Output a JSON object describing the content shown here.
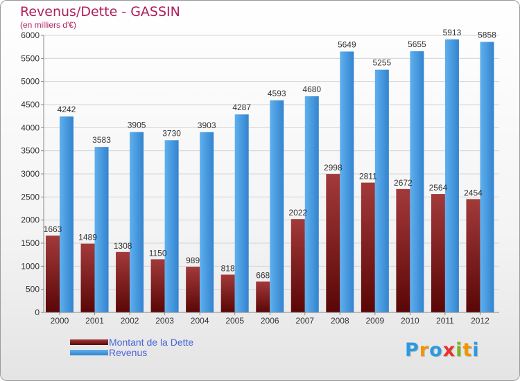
{
  "title": "Revenus/Dette - GASSIN",
  "subtitle": "(en milliers d'€)",
  "logo": {
    "text": "Proxiti",
    "letters": [
      "P",
      "r",
      "o",
      "x",
      "i",
      "t",
      "i"
    ],
    "colors": [
      "#2a9be0",
      "#f29400",
      "#2a9be0",
      "#e8322b",
      "#7ab51d",
      "#f29400",
      "#2a9be0"
    ]
  },
  "colors": {
    "debt": "#6b0d0d",
    "debt_light": "#a33a3a",
    "revenue": "#3a8fd6",
    "revenue_light": "#5fb0ee",
    "title": "#b01e5c",
    "legend_text": "#4a64d8"
  },
  "chart_data": {
    "type": "bar",
    "title": "Revenus/Dette - GASSIN",
    "subtitle": "(en milliers d'€)",
    "categories": [
      "2000",
      "2001",
      "2002",
      "2003",
      "2004",
      "2005",
      "2006",
      "2007",
      "2008",
      "2009",
      "2010",
      "2011",
      "2012"
    ],
    "series": [
      {
        "name": "Montant de la Dette",
        "values": [
          1663,
          1489,
          1308,
          1150,
          989,
          818,
          668,
          2022,
          2998,
          2811,
          2672,
          2564,
          2454
        ]
      },
      {
        "name": "Revenus",
        "values": [
          4242,
          3583,
          3905,
          3730,
          3903,
          4287,
          4593,
          4680,
          5649,
          5255,
          5655,
          5913,
          5858
        ]
      }
    ],
    "ylim": [
      0,
      6000
    ],
    "yticks": [
      0,
      500,
      1000,
      1500,
      2000,
      2500,
      3000,
      3500,
      4000,
      4500,
      5000,
      5500,
      6000
    ],
    "grid": true,
    "legend": "bottom-left"
  }
}
